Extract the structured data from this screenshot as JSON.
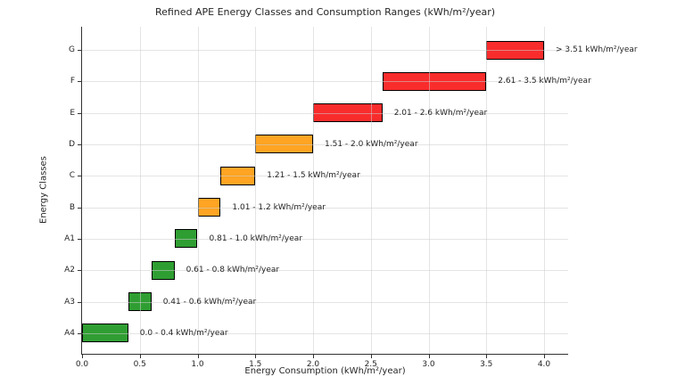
{
  "chart_data": {
    "type": "bar",
    "orientation": "horizontal",
    "title": "Refined APE Energy Classes and Consumption Ranges (kWh/m²/year)",
    "xlabel": "Energy Consumption (kWh/m²/year)",
    "ylabel": "Energy Classes",
    "xlim": [
      0,
      4.2
    ],
    "x_ticks": [
      "0.0",
      "0.5",
      "1.0",
      "1.5",
      "2.0",
      "2.5",
      "3.0",
      "3.5",
      "4.0"
    ],
    "grid": true,
    "legend": false,
    "colors": {
      "red": "#f92c2c",
      "orange": "#ffa423",
      "green": "#2f9e32",
      "bar_edge": "#000000"
    },
    "classes": [
      {
        "label": "G",
        "start": 3.5,
        "end": 4.0,
        "range_label": "> 3.51 kWh/m²/year",
        "color": "red"
      },
      {
        "label": "F",
        "start": 2.6,
        "end": 3.5,
        "range_label": "2.61 - 3.5 kWh/m²/year",
        "color": "red"
      },
      {
        "label": "E",
        "start": 2.0,
        "end": 2.6,
        "range_label": "2.01 - 2.6 kWh/m²/year",
        "color": "red"
      },
      {
        "label": "D",
        "start": 1.5,
        "end": 2.0,
        "range_label": "1.51 - 2.0 kWh/m²/year",
        "color": "orange"
      },
      {
        "label": "C",
        "start": 1.2,
        "end": 1.5,
        "range_label": "1.21 - 1.5 kWh/m²/year",
        "color": "orange"
      },
      {
        "label": "B",
        "start": 1.0,
        "end": 1.2,
        "range_label": "1.01 - 1.2 kWh/m²/year",
        "color": "orange"
      },
      {
        "label": "A1",
        "start": 0.8,
        "end": 1.0,
        "range_label": "0.81 - 1.0 kWh/m²/year",
        "color": "green"
      },
      {
        "label": "A2",
        "start": 0.6,
        "end": 0.8,
        "range_label": "0.61 - 0.8 kWh/m²/year",
        "color": "green"
      },
      {
        "label": "A3",
        "start": 0.4,
        "end": 0.6,
        "range_label": "0.41 - 0.6 kWh/m²/year",
        "color": "green"
      },
      {
        "label": "A4",
        "start": 0.0,
        "end": 0.4,
        "range_label": "0.0 - 0.4 kWh/m²/year",
        "color": "green"
      }
    ]
  }
}
